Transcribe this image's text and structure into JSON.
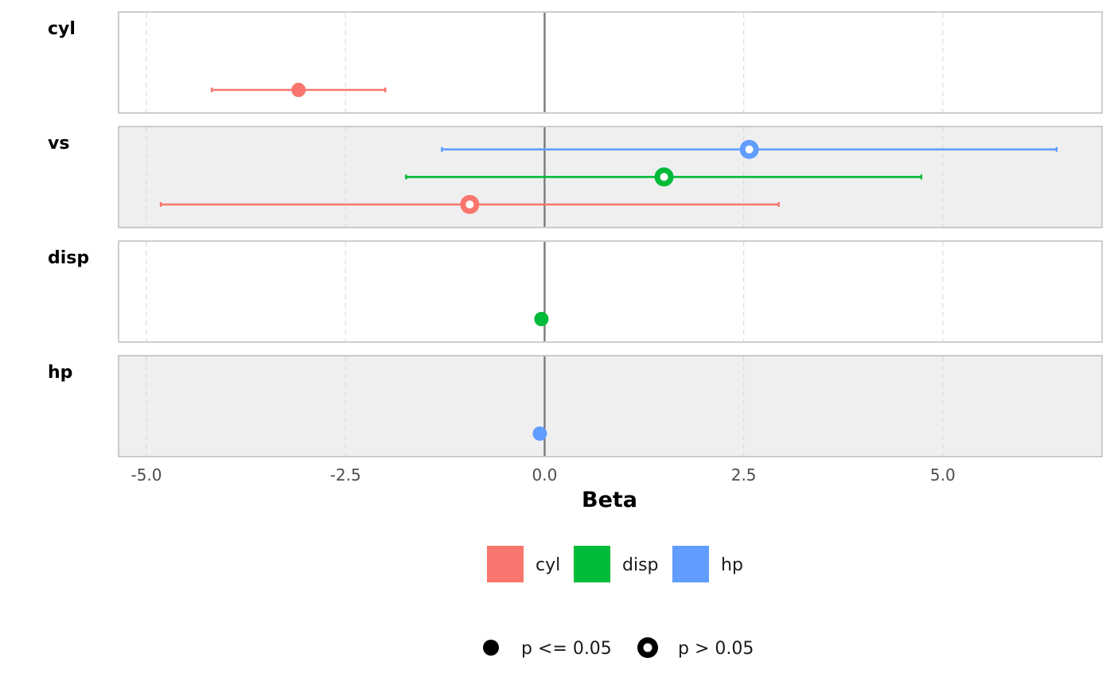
{
  "chart_data": {
    "type": "scatter",
    "subtype": "faceted forest plot",
    "xlabel": "Beta",
    "xlim": [
      -5.35,
      7.0
    ],
    "x_ticks": [
      -5.0,
      -2.5,
      0.0,
      2.5,
      5.0
    ],
    "x_tick_labels": [
      "-5.0",
      "-2.5",
      "0.0",
      "2.5",
      "5.0"
    ],
    "reference_line": 0.0,
    "grid": "vertical dashed",
    "facet_colors": [
      "#ffffff",
      "#efefef"
    ],
    "panels": [
      {
        "name": "cyl",
        "estimates": [
          {
            "series": "cyl",
            "beta": -3.09,
            "low": -4.18,
            "high": -2.0,
            "significant": true
          }
        ]
      },
      {
        "name": "vs",
        "estimates": [
          {
            "series": "hp",
            "beta": 2.57,
            "low": -1.29,
            "high": 6.43,
            "significant": false
          },
          {
            "series": "disp",
            "beta": 1.5,
            "low": -1.74,
            "high": 4.73,
            "significant": false
          },
          {
            "series": "cyl",
            "beta": -0.94,
            "low": -4.82,
            "high": 2.94,
            "significant": false
          }
        ]
      },
      {
        "name": "disp",
        "estimates": [
          {
            "series": "disp",
            "beta": -0.04,
            "low": -0.05,
            "high": -0.03,
            "significant": true
          }
        ]
      },
      {
        "name": "hp",
        "estimates": [
          {
            "series": "hp",
            "beta": -0.06,
            "low": -0.07,
            "high": -0.04,
            "significant": true
          }
        ]
      }
    ],
    "legend_color": [
      {
        "name": "cyl",
        "color": "#f8766d"
      },
      {
        "name": "disp",
        "color": "#00ba38"
      },
      {
        "name": "hp",
        "color": "#619cff"
      }
    ],
    "legend_shape": [
      {
        "label": "p <= 0.05",
        "shape": "filled-circle"
      },
      {
        "label": "p > 0.05",
        "shape": "open-circle"
      }
    ],
    "legend_placement": "bottom"
  }
}
